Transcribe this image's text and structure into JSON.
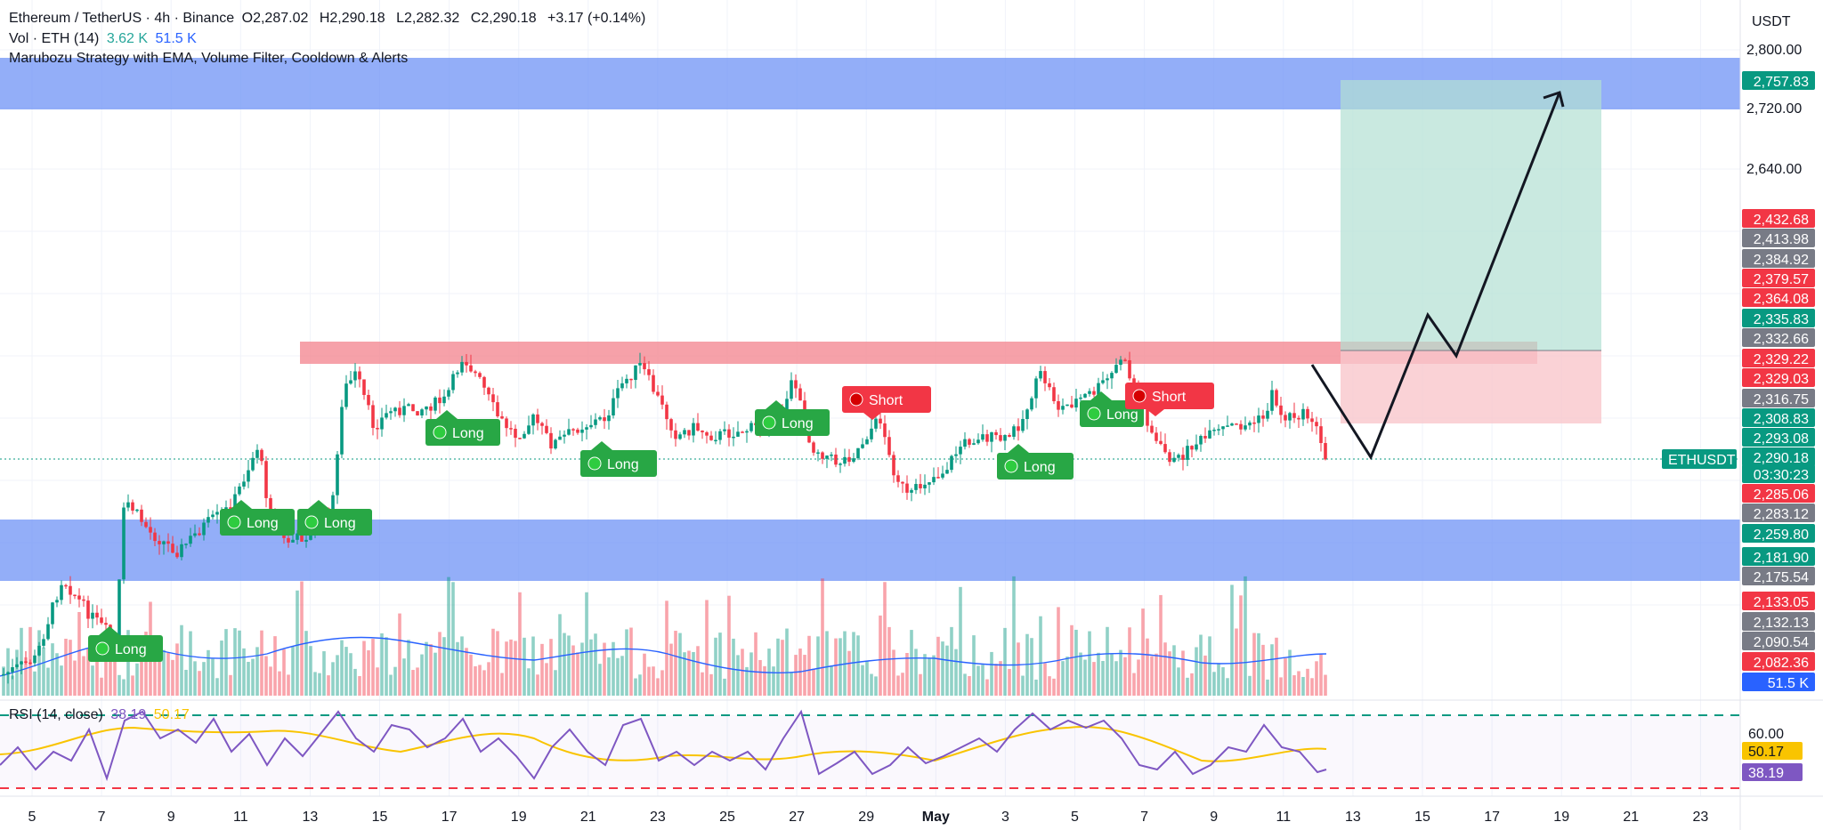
{
  "header": {
    "symbol": "Ethereum / TetherUS · 4h · Binance",
    "open_label": "O",
    "open": "2,287.02",
    "high_label": "H",
    "high": "2,290.18",
    "low_label": "L",
    "low": "2,282.32",
    "close_label": "C",
    "close": "2,290.18",
    "change": "+3.17 (+0.14%)",
    "volume_label": "Vol · ETH (14)",
    "volume_value": "3.62 K",
    "volume_ma": "51.5 K",
    "strategy": "Marubozu Strategy with EMA, Volume Filter, Cooldown & Alerts"
  },
  "price_axis": {
    "currency": "USDT",
    "ticks": [
      "2,800.00",
      "2,720.00",
      "2,640.00"
    ],
    "tags": [
      {
        "value": "2,757.83",
        "color": "#089981"
      },
      {
        "value": "2,432.68",
        "color": "#f23645"
      },
      {
        "value": "2,413.98",
        "color": "#787b86"
      },
      {
        "value": "2,384.92",
        "color": "#787b86"
      },
      {
        "value": "2,379.57",
        "color": "#f23645"
      },
      {
        "value": "2,364.08",
        "color": "#f23645"
      },
      {
        "value": "2,335.83",
        "color": "#089981"
      },
      {
        "value": "2,332.66",
        "color": "#787b86"
      },
      {
        "value": "2,329.22",
        "color": "#f23645"
      },
      {
        "value": "2,329.03",
        "color": "#f23645"
      },
      {
        "value": "2,316.75",
        "color": "#787b86"
      },
      {
        "value": "2,308.83",
        "color": "#089981"
      },
      {
        "value": "2,293.08",
        "color": "#089981"
      },
      {
        "value": "2,290.18",
        "color": "#089981"
      },
      {
        "value": "03:30:23",
        "color": "#089981"
      },
      {
        "value": "2,285.06",
        "color": "#f23645"
      },
      {
        "value": "2,283.12",
        "color": "#787b86"
      },
      {
        "value": "2,259.80",
        "color": "#089981"
      },
      {
        "value": "2,181.90",
        "color": "#089981"
      },
      {
        "value": "2,175.54",
        "color": "#787b86"
      },
      {
        "value": "2,133.05",
        "color": "#f23645"
      },
      {
        "value": "2,132.13",
        "color": "#787b86"
      },
      {
        "value": "2,090.54",
        "color": "#787b86"
      },
      {
        "value": "2,082.36",
        "color": "#f23645"
      },
      {
        "value": "51.5 K",
        "color": "#2962ff"
      }
    ],
    "symbol_tag": "ETHUSDT"
  },
  "rsi": {
    "label": "RSI (14, close)",
    "value": "38.19",
    "ma_value": "50.17",
    "tick": "60.00",
    "tag_ma": "50.17",
    "tag_value": "38.19"
  },
  "signals": [
    {
      "label": "Long",
      "type": "long"
    },
    {
      "label": "Long",
      "type": "long"
    },
    {
      "label": "Long",
      "type": "long"
    },
    {
      "label": "Long",
      "type": "long"
    },
    {
      "label": "Long",
      "type": "long"
    },
    {
      "label": "Long",
      "type": "long"
    },
    {
      "label": "Long",
      "type": "long"
    },
    {
      "label": "Long",
      "type": "long"
    },
    {
      "label": "Short",
      "type": "short"
    },
    {
      "label": "Short",
      "type": "short"
    }
  ],
  "time_axis": [
    "5",
    "7",
    "9",
    "11",
    "13",
    "15",
    "17",
    "19",
    "21",
    "23",
    "25",
    "27",
    "29",
    "May",
    "3",
    "5",
    "7",
    "9",
    "11",
    "13",
    "15",
    "17",
    "19",
    "21",
    "23"
  ],
  "colors": {
    "bull": "#089981",
    "bear": "#f23645",
    "zone_blue": "#6f93f5",
    "zone_red": "#f48a93",
    "target_fill": "#b2dfd3",
    "stop_fill": "#f9c7cc"
  }
}
